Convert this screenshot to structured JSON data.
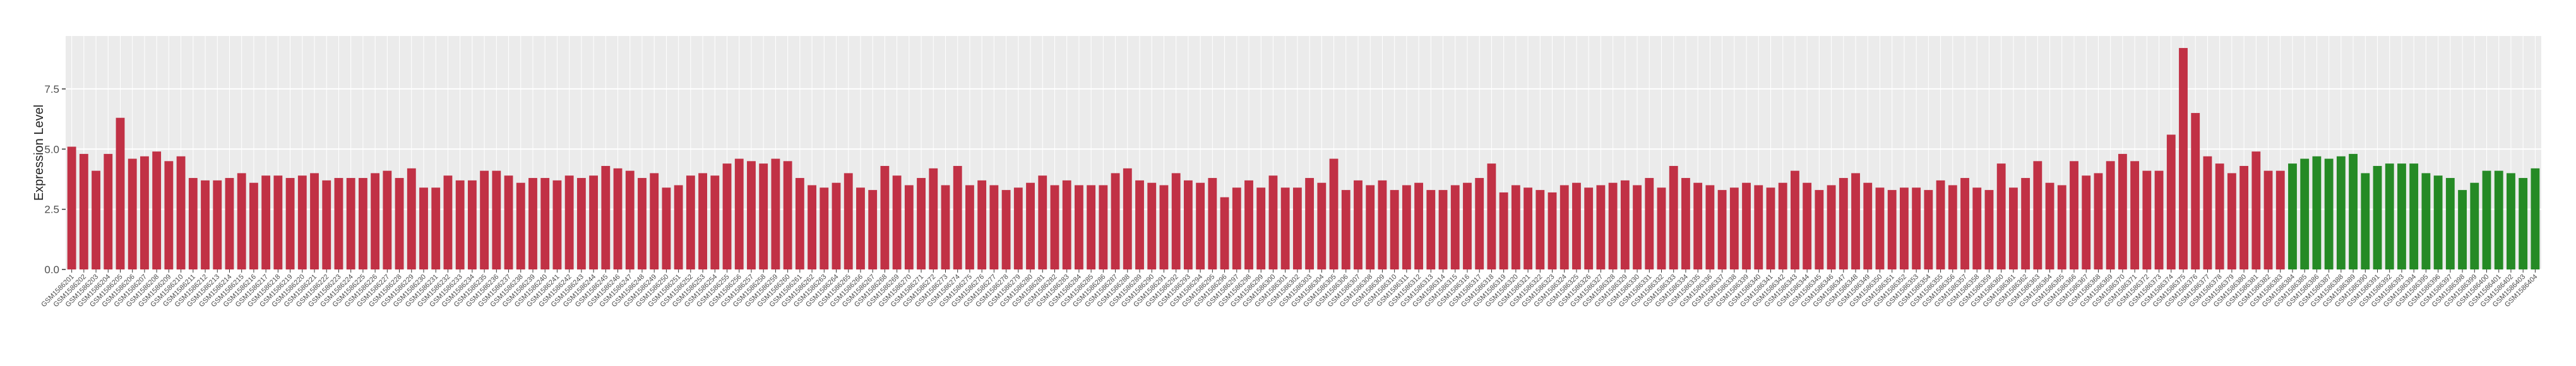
{
  "chart_data": {
    "type": "bar",
    "y_label": "Expression Level",
    "categories": [
      "GSM1586201",
      "GSM1586202",
      "GSM1586203",
      "GSM1586204",
      "GSM1586205",
      "GSM1586206",
      "GSM1586207",
      "GSM1586208",
      "GSM1586209",
      "GSM1586210",
      "GSM1586211",
      "GSM1586212",
      "GSM1586213",
      "GSM1586214",
      "GSM1586215",
      "GSM1586216",
      "GSM1586217",
      "GSM1586218",
      "GSM1586219",
      "GSM1586220",
      "GSM1586221",
      "GSM1586222",
      "GSM1586223",
      "GSM1586224",
      "GSM1586225",
      "GSM1586226",
      "GSM1586227",
      "GSM1586228",
      "GSM1586229",
      "GSM1586230",
      "GSM1586231",
      "GSM1586232",
      "GSM1586233",
      "GSM1586234",
      "GSM1586235",
      "GSM1586236",
      "GSM1586237",
      "GSM1586238",
      "GSM1586239",
      "GSM1586240",
      "GSM1586241",
      "GSM1586242",
      "GSM1586243",
      "GSM1586244",
      "GSM1586245",
      "GSM1586246",
      "GSM1586247",
      "GSM1586248",
      "GSM1586249",
      "GSM1586250",
      "GSM1586251",
      "GSM1586252",
      "GSM1586253",
      "GSM1586254",
      "GSM1586255",
      "GSM1586256",
      "GSM1586257",
      "GSM1586258",
      "GSM1586259",
      "GSM1586260",
      "GSM1586261",
      "GSM1586262",
      "GSM1586263",
      "GSM1586264",
      "GSM1586265",
      "GSM1586266",
      "GSM1586267",
      "GSM1586268",
      "GSM1586269",
      "GSM1586270",
      "GSM1586271",
      "GSM1586272",
      "GSM1586273",
      "GSM1586274",
      "GSM1586275",
      "GSM1586276",
      "GSM1586277",
      "GSM1586278",
      "GSM1586279",
      "GSM1586280",
      "GSM1586281",
      "GSM1586282",
      "GSM1586283",
      "GSM1586284",
      "GSM1586285",
      "GSM1586286",
      "GSM1586287",
      "GSM1586288",
      "GSM1586289",
      "GSM1586290",
      "GSM1586291",
      "GSM1586292",
      "GSM1586293",
      "GSM1586294",
      "GSM1586295",
      "GSM1586296",
      "GSM1586297",
      "GSM1586298",
      "GSM1586299",
      "GSM1586300",
      "GSM1586301",
      "GSM1586302",
      "GSM1586303",
      "GSM1586304",
      "GSM1586305",
      "GSM1586306",
      "GSM1586307",
      "GSM1586308",
      "GSM1586309",
      "GSM1586310",
      "GSM1586311",
      "GSM1586312",
      "GSM1586313",
      "GSM1586314",
      "GSM1586315",
      "GSM1586316",
      "GSM1586317",
      "GSM1586318",
      "GSM1586319",
      "GSM1586320",
      "GSM1586321",
      "GSM1586322",
      "GSM1586323",
      "GSM1586324",
      "GSM1586325",
      "GSM1586326",
      "GSM1586327",
      "GSM1586328",
      "GSM1586329",
      "GSM1586330",
      "GSM1586331",
      "GSM1586332",
      "GSM1586333",
      "GSM1586334",
      "GSM1586335",
      "GSM1586336",
      "GSM1586337",
      "GSM1586338",
      "GSM1586339",
      "GSM1586340",
      "GSM1586341",
      "GSM1586342",
      "GSM1586343",
      "GSM1586344",
      "GSM1586345",
      "GSM1586346",
      "GSM1586347",
      "GSM1586348",
      "GSM1586349",
      "GSM1586350",
      "GSM1586351",
      "GSM1586352",
      "GSM1586353",
      "GSM1586354",
      "GSM1586355",
      "GSM1586356",
      "GSM1586357",
      "GSM1586358",
      "GSM1586359",
      "GSM1586360",
      "GSM1586361",
      "GSM1586362",
      "GSM1586363",
      "GSM1586364",
      "GSM1586365",
      "GSM1586366",
      "GSM1586367",
      "GSM1586368",
      "GSM1586369",
      "GSM1586370",
      "GSM1586371",
      "GSM1586372",
      "GSM1586373",
      "GSM1586374",
      "GSM1586375",
      "GSM1586376",
      "GSM1586377",
      "GSM1586378",
      "GSM1586379",
      "GSM1586380",
      "GSM1586381",
      "GSM1586382",
      "GSM1586383",
      "GSM1586384",
      "GSM1586385",
      "GSM1586386",
      "GSM1586387",
      "GSM1586388",
      "GSM1586389",
      "GSM1586390",
      "GSM1586391",
      "GSM1586392",
      "GSM1586393",
      "GSM1586394",
      "GSM1586395",
      "GSM1586396",
      "GSM1586397",
      "GSM1586398",
      "GSM1586399",
      "GSM1586400",
      "GSM1586401",
      "GSM1586402",
      "GSM1586403",
      "GSM1586404"
    ],
    "series": [
      {
        "color": "#c13145",
        "values": [
          5.1,
          4.8,
          4.1,
          4.8,
          6.3,
          4.6,
          4.7,
          4.9,
          4.5,
          4.7,
          3.8,
          3.7,
          3.7,
          3.8,
          4.0,
          3.6,
          3.9,
          3.9,
          3.8,
          3.9,
          4.0,
          3.7,
          3.8,
          3.8,
          3.8,
          4.0,
          4.1,
          3.8,
          4.2,
          3.4,
          3.4,
          3.9,
          3.7,
          3.7,
          4.1,
          4.1,
          3.9,
          3.6,
          3.8,
          3.8,
          3.7,
          3.9,
          3.8,
          3.9,
          4.3,
          4.2,
          4.1,
          3.8,
          4.0,
          3.4,
          3.5,
          3.9,
          4.0,
          3.9,
          4.4,
          4.6,
          4.5,
          4.4,
          4.6,
          4.5,
          3.8,
          3.5,
          3.4,
          3.6,
          4.0,
          3.4,
          3.3,
          4.3,
          3.9,
          3.5,
          3.8,
          4.2,
          3.5,
          4.3,
          3.5,
          3.7,
          3.5,
          3.3,
          3.4,
          3.6,
          3.9,
          3.5,
          3.7,
          3.5,
          3.5,
          3.5,
          4.0,
          4.2,
          3.7,
          3.6,
          3.5,
          4.0,
          3.7,
          3.6,
          3.8,
          3.0,
          3.4,
          3.7,
          3.4,
          3.9,
          3.4,
          3.4,
          3.8,
          3.6,
          4.6,
          3.3,
          3.7,
          3.5,
          3.7,
          3.3,
          3.5,
          3.6,
          3.3,
          3.3,
          3.5,
          3.6,
          3.8,
          4.4,
          3.2,
          3.5,
          3.4,
          3.3,
          3.2,
          3.5,
          3.6,
          3.4,
          3.5,
          3.6,
          3.7,
          3.5,
          3.8,
          3.4,
          4.3,
          3.8,
          3.6,
          3.5,
          3.3,
          3.4,
          3.6,
          3.5,
          3.4,
          3.6,
          4.1,
          3.6,
          3.3,
          3.5,
          3.8,
          4.0,
          3.6,
          3.4,
          3.3,
          3.4,
          3.4,
          3.3,
          3.7,
          3.5,
          3.8,
          3.4,
          3.3,
          4.4,
          3.4,
          3.8,
          4.5,
          3.6,
          3.5,
          4.5,
          3.9,
          4.0,
          4.5,
          4.8,
          4.5,
          4.1,
          4.1,
          5.6,
          9.2,
          6.5,
          4.7,
          4.4,
          4.0,
          4.3,
          4.9,
          4.1,
          4.1,
          null,
          null,
          null,
          null,
          null,
          null,
          null,
          null,
          null,
          null,
          null,
          null,
          null,
          null,
          null,
          null,
          null,
          null,
          null,
          null,
          null
        ]
      },
      {
        "color": "#258a25",
        "values": [
          null,
          null,
          null,
          null,
          null,
          null,
          null,
          null,
          null,
          null,
          null,
          null,
          null,
          null,
          null,
          null,
          null,
          null,
          null,
          null,
          null,
          null,
          null,
          null,
          null,
          null,
          null,
          null,
          null,
          null,
          null,
          null,
          null,
          null,
          null,
          null,
          null,
          null,
          null,
          null,
          null,
          null,
          null,
          null,
          null,
          null,
          null,
          null,
          null,
          null,
          null,
          null,
          null,
          null,
          null,
          null,
          null,
          null,
          null,
          null,
          null,
          null,
          null,
          null,
          null,
          null,
          null,
          null,
          null,
          null,
          null,
          null,
          null,
          null,
          null,
          null,
          null,
          null,
          null,
          null,
          null,
          null,
          null,
          null,
          null,
          null,
          null,
          null,
          null,
          null,
          null,
          null,
          null,
          null,
          null,
          null,
          null,
          null,
          null,
          null,
          null,
          null,
          null,
          null,
          null,
          null,
          null,
          null,
          null,
          null,
          null,
          null,
          null,
          null,
          null,
          null,
          null,
          null,
          null,
          null,
          null,
          null,
          null,
          null,
          null,
          null,
          null,
          null,
          null,
          null,
          null,
          null,
          null,
          null,
          null,
          null,
          null,
          null,
          null,
          null,
          null,
          null,
          null,
          null,
          null,
          null,
          null,
          null,
          null,
          null,
          null,
          null,
          null,
          null,
          null,
          null,
          null,
          null,
          null,
          null,
          null,
          null,
          null,
          null,
          null,
          null,
          null,
          null,
          null,
          null,
          null,
          null,
          null,
          null,
          null,
          null,
          null,
          null,
          null,
          null,
          null,
          null,
          null,
          4.4,
          4.6,
          4.7,
          4.6,
          4.7,
          4.8,
          4.0,
          4.3,
          4.4,
          4.4,
          4.4,
          4.0,
          3.9,
          3.8,
          3.3,
          3.6,
          4.1,
          4.1,
          4.0,
          3.8,
          4.2
        ]
      }
    ],
    "ylim": [
      0,
      9.7
    ],
    "yticks": [
      {
        "value": 0,
        "label": "0.0"
      },
      2.5,
      {
        "value": 5,
        "label": "5.0"
      },
      7.5
    ],
    "grid": true
  }
}
